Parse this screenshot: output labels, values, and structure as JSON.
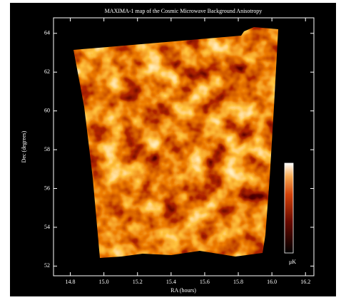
{
  "chart_data": {
    "type": "map",
    "title": "MAXIMA-1 map of the Cosmic Microwave Background Anisotropy",
    "x_label": "RA (hours)",
    "y_label": "Dec (degrees)",
    "xlim": [
      14.7,
      16.25
    ],
    "xticks": [
      {
        "value": 14.8,
        "label": "14.8"
      },
      {
        "value": 15.0,
        "label": "15.0"
      },
      {
        "value": 15.2,
        "label": "15.2"
      },
      {
        "value": 15.4,
        "label": "15.4"
      },
      {
        "value": 15.6,
        "label": "15.6"
      },
      {
        "value": 15.8,
        "label": "15.8"
      },
      {
        "value": 16.0,
        "label": "16.0"
      },
      {
        "value": 16.2,
        "label": "16.2"
      }
    ],
    "ylim": [
      51.5,
      64.8
    ],
    "yticks": [
      52,
      54,
      56,
      58,
      60,
      62,
      64
    ],
    "colorbar_label": "μK"
  }
}
